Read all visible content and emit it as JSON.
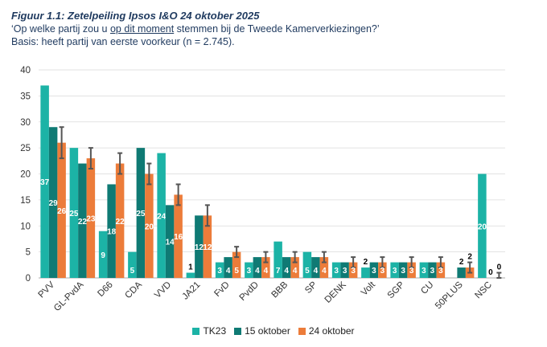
{
  "header": {
    "title": "Figuur 1.1: Zetelpeiling Ipsos I&O 24 oktober 2025",
    "question_before": "‘Op welke partij zou u ",
    "question_underlined": "op dit moment",
    "question_after": " stemmen bij de Tweede Kamerverkiezingen?’",
    "basis": "Basis: heeft partij van eerste voorkeur (n = 2.745)."
  },
  "chart_data": {
    "type": "bar",
    "title": "Zetelpeiling Ipsos I&O 24 oktober 2025",
    "xlabel": "",
    "ylabel": "",
    "ylim": [
      0,
      40
    ],
    "yticks": [
      "0",
      "5",
      "10",
      "15",
      "20",
      "25",
      "30",
      "35",
      "40"
    ],
    "grid": true,
    "legend_position": "bottom",
    "categories": [
      "PVV",
      "GL-PvdA",
      "D66",
      "CDA",
      "VVD",
      "JA21",
      "FvD",
      "PvdD",
      "BBB",
      "SP",
      "DENK",
      "Volt",
      "SGP",
      "CU",
      "50PLUS",
      "NSC"
    ],
    "series": [
      {
        "name": "TK23",
        "color": "#1cb3a6",
        "values": [
          37,
          25,
          9,
          5,
          24,
          1,
          3,
          3,
          7,
          5,
          3,
          2,
          3,
          3,
          0,
          20
        ],
        "labels": [
          "37",
          "25",
          "9",
          "5",
          "24",
          "1",
          "3",
          "3",
          "7",
          "5",
          "3",
          "2",
          "3",
          "3",
          "",
          "20"
        ]
      },
      {
        "name": "15 oktober",
        "color": "#0f7a74",
        "values": [
          29,
          22,
          18,
          25,
          14,
          12,
          4,
          4,
          4,
          4,
          3,
          3,
          3,
          3,
          2,
          0
        ],
        "labels": [
          "29",
          "22",
          "18",
          "25",
          "14",
          "12",
          "4",
          "4",
          "4",
          "4",
          "3",
          "3",
          "3",
          "3",
          "2",
          "0"
        ]
      },
      {
        "name": "24 oktober",
        "color": "#ec7c3a",
        "values": [
          26,
          23,
          22,
          20,
          16,
          12,
          5,
          4,
          4,
          4,
          3,
          3,
          3,
          3,
          2,
          0
        ],
        "labels": [
          "26",
          "23",
          "22",
          "20",
          "16",
          "12",
          "5",
          "4",
          "4",
          "4",
          "3",
          "3",
          "3",
          "3",
          "2",
          "0"
        ],
        "error_low": [
          23,
          21,
          20,
          18,
          14,
          10,
          4,
          3,
          3,
          3,
          2,
          2,
          2,
          2,
          1,
          0
        ],
        "error_high": [
          29,
          25,
          24,
          22,
          18,
          14,
          6,
          5,
          5,
          5,
          4,
          4,
          4,
          4,
          3,
          1
        ]
      }
    ]
  },
  "colors": {
    "tk23": "#1cb3a6",
    "oct15": "#0f7a74",
    "oct24": "#ec7c3a",
    "error_bar": "#555555",
    "title": "#1f3a5f"
  }
}
